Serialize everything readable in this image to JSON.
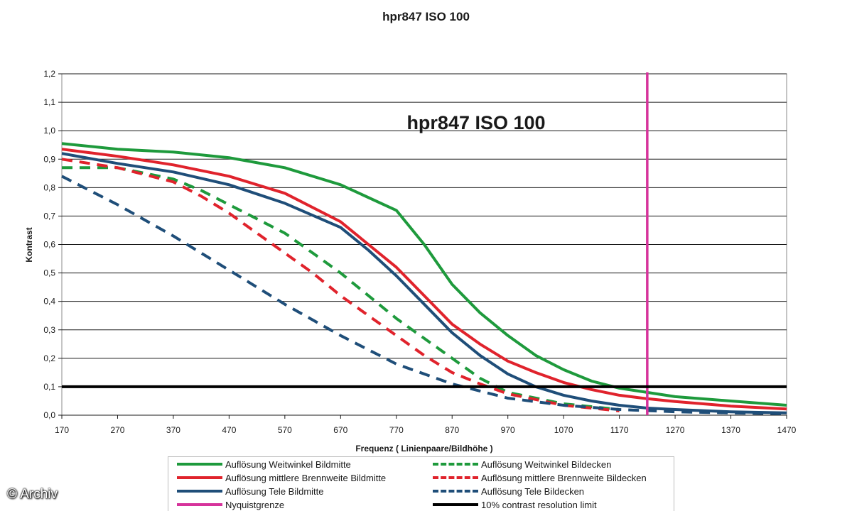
{
  "chart_data": {
    "type": "line",
    "title": "hpr847 ISO 100",
    "inner_title": "hpr847 ISO 100",
    "xlabel": "Frequenz ( Linienpaare/Bildhöhe )",
    "ylabel": "Kontrast",
    "xlim": [
      170,
      1470
    ],
    "ylim": [
      0,
      1.2
    ],
    "xticks": [
      "170",
      "270",
      "370",
      "470",
      "570",
      "670",
      "770",
      "870",
      "970",
      "1070",
      "1170",
      "1270",
      "1370",
      "1470"
    ],
    "yticks": [
      "0,0",
      "0,1",
      "0,2",
      "0,3",
      "0,4",
      "0,5",
      "0,6",
      "0,7",
      "0,8",
      "0,9",
      "1,0",
      "1,1",
      "1,2"
    ],
    "grid": "horizontal",
    "legend_position": "bottom",
    "series": [
      {
        "name": "Auflösung Weitwinkel Bildmitte",
        "color": "#1e9a3c",
        "dash": "solid",
        "x": [
          170,
          270,
          370,
          470,
          570,
          670,
          770,
          820,
          870,
          920,
          970,
          1020,
          1070,
          1120,
          1170,
          1220,
          1270,
          1370,
          1470
        ],
        "y": [
          0.955,
          0.935,
          0.925,
          0.905,
          0.87,
          0.81,
          0.72,
          0.6,
          0.46,
          0.36,
          0.28,
          0.21,
          0.16,
          0.12,
          0.095,
          0.08,
          0.065,
          0.05,
          0.035
        ]
      },
      {
        "name": "Auflösung mittlere Brennweite Bildmitte",
        "color": "#e0232c",
        "dash": "solid",
        "x": [
          170,
          270,
          370,
          470,
          570,
          670,
          720,
          770,
          820,
          870,
          920,
          970,
          1020,
          1070,
          1120,
          1170,
          1220,
          1270,
          1370,
          1470
        ],
        "y": [
          0.935,
          0.91,
          0.88,
          0.84,
          0.78,
          0.68,
          0.6,
          0.52,
          0.42,
          0.32,
          0.25,
          0.19,
          0.15,
          0.115,
          0.09,
          0.07,
          0.058,
          0.048,
          0.032,
          0.022
        ]
      },
      {
        "name": "Auflösung Tele Bildmitte",
        "color": "#1f4e79",
        "dash": "solid",
        "x": [
          170,
          270,
          370,
          470,
          570,
          670,
          720,
          770,
          820,
          870,
          920,
          970,
          1020,
          1070,
          1120,
          1170,
          1220,
          1270,
          1370,
          1470
        ],
        "y": [
          0.92,
          0.885,
          0.855,
          0.81,
          0.745,
          0.66,
          0.58,
          0.49,
          0.39,
          0.29,
          0.21,
          0.145,
          0.1,
          0.07,
          0.05,
          0.035,
          0.025,
          0.02,
          0.012,
          0.008
        ]
      },
      {
        "name": "Auflösung Weitwinkel Bildecken",
        "color": "#1e9a3c",
        "dash": "dashed",
        "x": [
          170,
          270,
          370,
          420,
          470,
          520,
          570,
          620,
          670,
          720,
          770,
          820,
          870,
          920,
          970,
          1070,
          1170
        ],
        "y": [
          0.87,
          0.87,
          0.83,
          0.79,
          0.74,
          0.69,
          0.64,
          0.57,
          0.5,
          0.42,
          0.34,
          0.27,
          0.2,
          0.13,
          0.08,
          0.04,
          0.02
        ]
      },
      {
        "name": "Auflösung mittlere Brennweite Bildecken",
        "color": "#e0232c",
        "dash": "dashed",
        "x": [
          170,
          270,
          370,
          420,
          470,
          520,
          570,
          620,
          670,
          720,
          770,
          820,
          870,
          920,
          970,
          1070,
          1170
        ],
        "y": [
          0.9,
          0.87,
          0.82,
          0.77,
          0.71,
          0.64,
          0.57,
          0.5,
          0.42,
          0.35,
          0.28,
          0.21,
          0.15,
          0.11,
          0.075,
          0.035,
          0.015
        ]
      },
      {
        "name": "Auflösung Tele Bildecken",
        "color": "#1f4e79",
        "dash": "dashed",
        "x": [
          170,
          270,
          370,
          470,
          570,
          670,
          770,
          870,
          970,
          1070,
          1170,
          1270,
          1370,
          1470
        ],
        "y": [
          0.84,
          0.74,
          0.63,
          0.51,
          0.39,
          0.28,
          0.18,
          0.11,
          0.06,
          0.035,
          0.02,
          0.012,
          0.008,
          0.005
        ]
      },
      {
        "name": "Nyquistgrenze",
        "color": "#d6339b",
        "dash": "solid",
        "type": "vertical",
        "x_value": 1220
      },
      {
        "name": "10% contrast resolution limit",
        "color": "#000000",
        "dash": "solid",
        "type": "horizontal",
        "y_value": 0.1
      }
    ]
  },
  "watermark": "© Archiv"
}
